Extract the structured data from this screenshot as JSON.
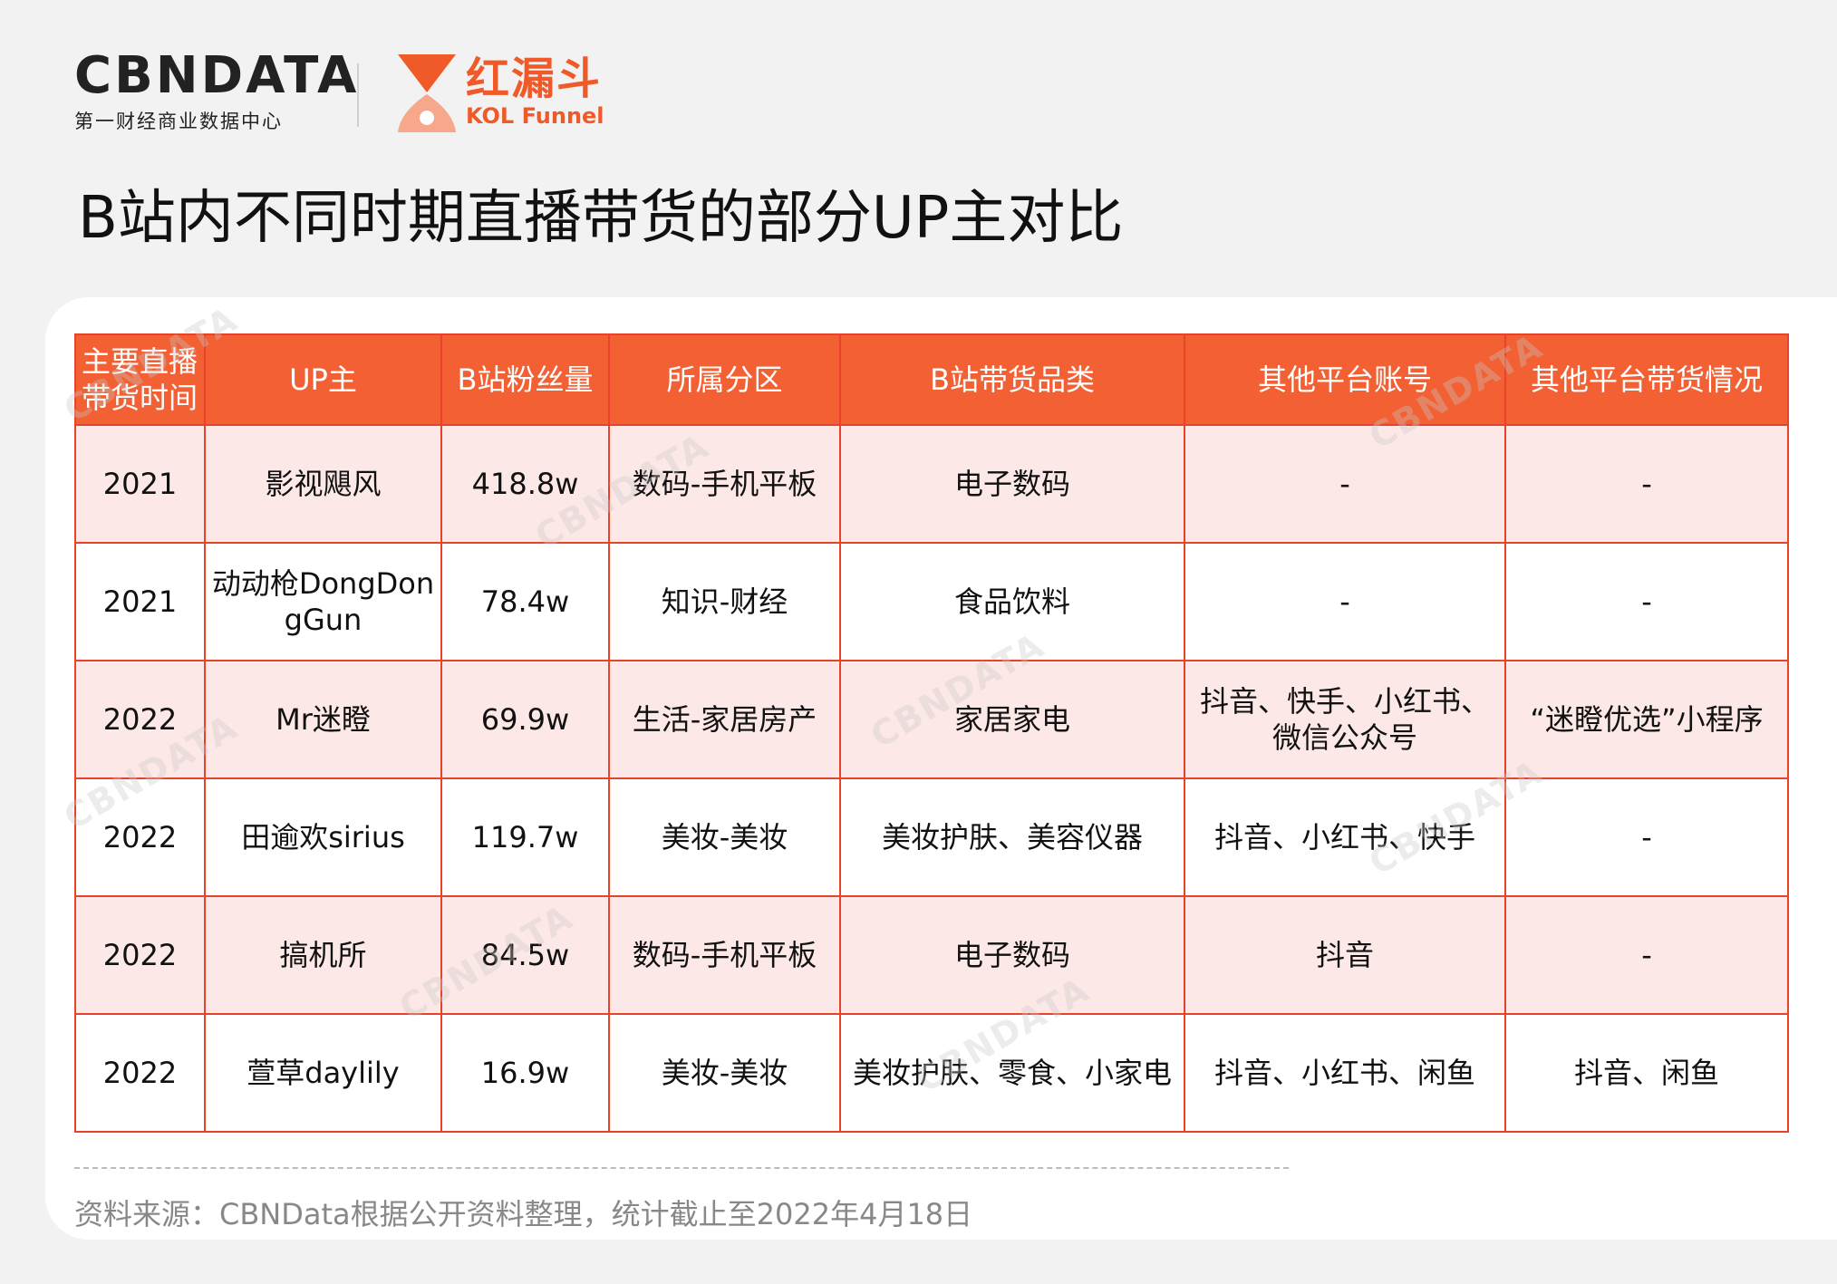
{
  "header": {
    "logo_cbn": "CBNDATA",
    "logo_cbn_sub": "第一财经商业数据中心",
    "logo_funnel_cn": "红漏斗",
    "logo_funnel_en": "KOL Funnel",
    "title": "B站内不同时期直播带货的部分UP主对比"
  },
  "table": {
    "headers": [
      "主要直播带货时间",
      "UP主",
      "B站粉丝量",
      "所属分区",
      "B站带货品类",
      "其他平台账号",
      "其他平台带货情况"
    ],
    "rows": [
      [
        "2021",
        "影视飓风",
        "418.8w",
        "数码-手机平板",
        "电子数码",
        "-",
        "-"
      ],
      [
        "2021",
        "动动枪DongDongGun",
        "78.4w",
        "知识-财经",
        "食品饮料",
        "-",
        "-"
      ],
      [
        "2022",
        "Mr迷瞪",
        "69.9w",
        "生活-家居房产",
        "家居家电",
        "抖音、快手、小红书、微信公众号",
        "“迷瞪优选”小程序"
      ],
      [
        "2022",
        "田逾欢sirius",
        "119.7w",
        "美妆-美妆",
        "美妆护肤、美容仪器",
        "抖音、小红书、快手",
        "-"
      ],
      [
        "2022",
        "搞机所",
        "84.5w",
        "数码-手机平板",
        "电子数码",
        "抖音",
        "-"
      ],
      [
        "2022",
        "萱草daylily",
        "16.9w",
        "美妆-美妆",
        "美妆护肤、零食、小家电",
        "抖音、小红书、闲鱼",
        "抖音、闲鱼"
      ]
    ]
  },
  "footer": {
    "source": "资料来源：CBNData根据公开资料整理，统计截止至2022年4月18日"
  },
  "colors": {
    "accent": "#f26033",
    "row_pink": "#fce8e6",
    "border": "#e8432a"
  }
}
